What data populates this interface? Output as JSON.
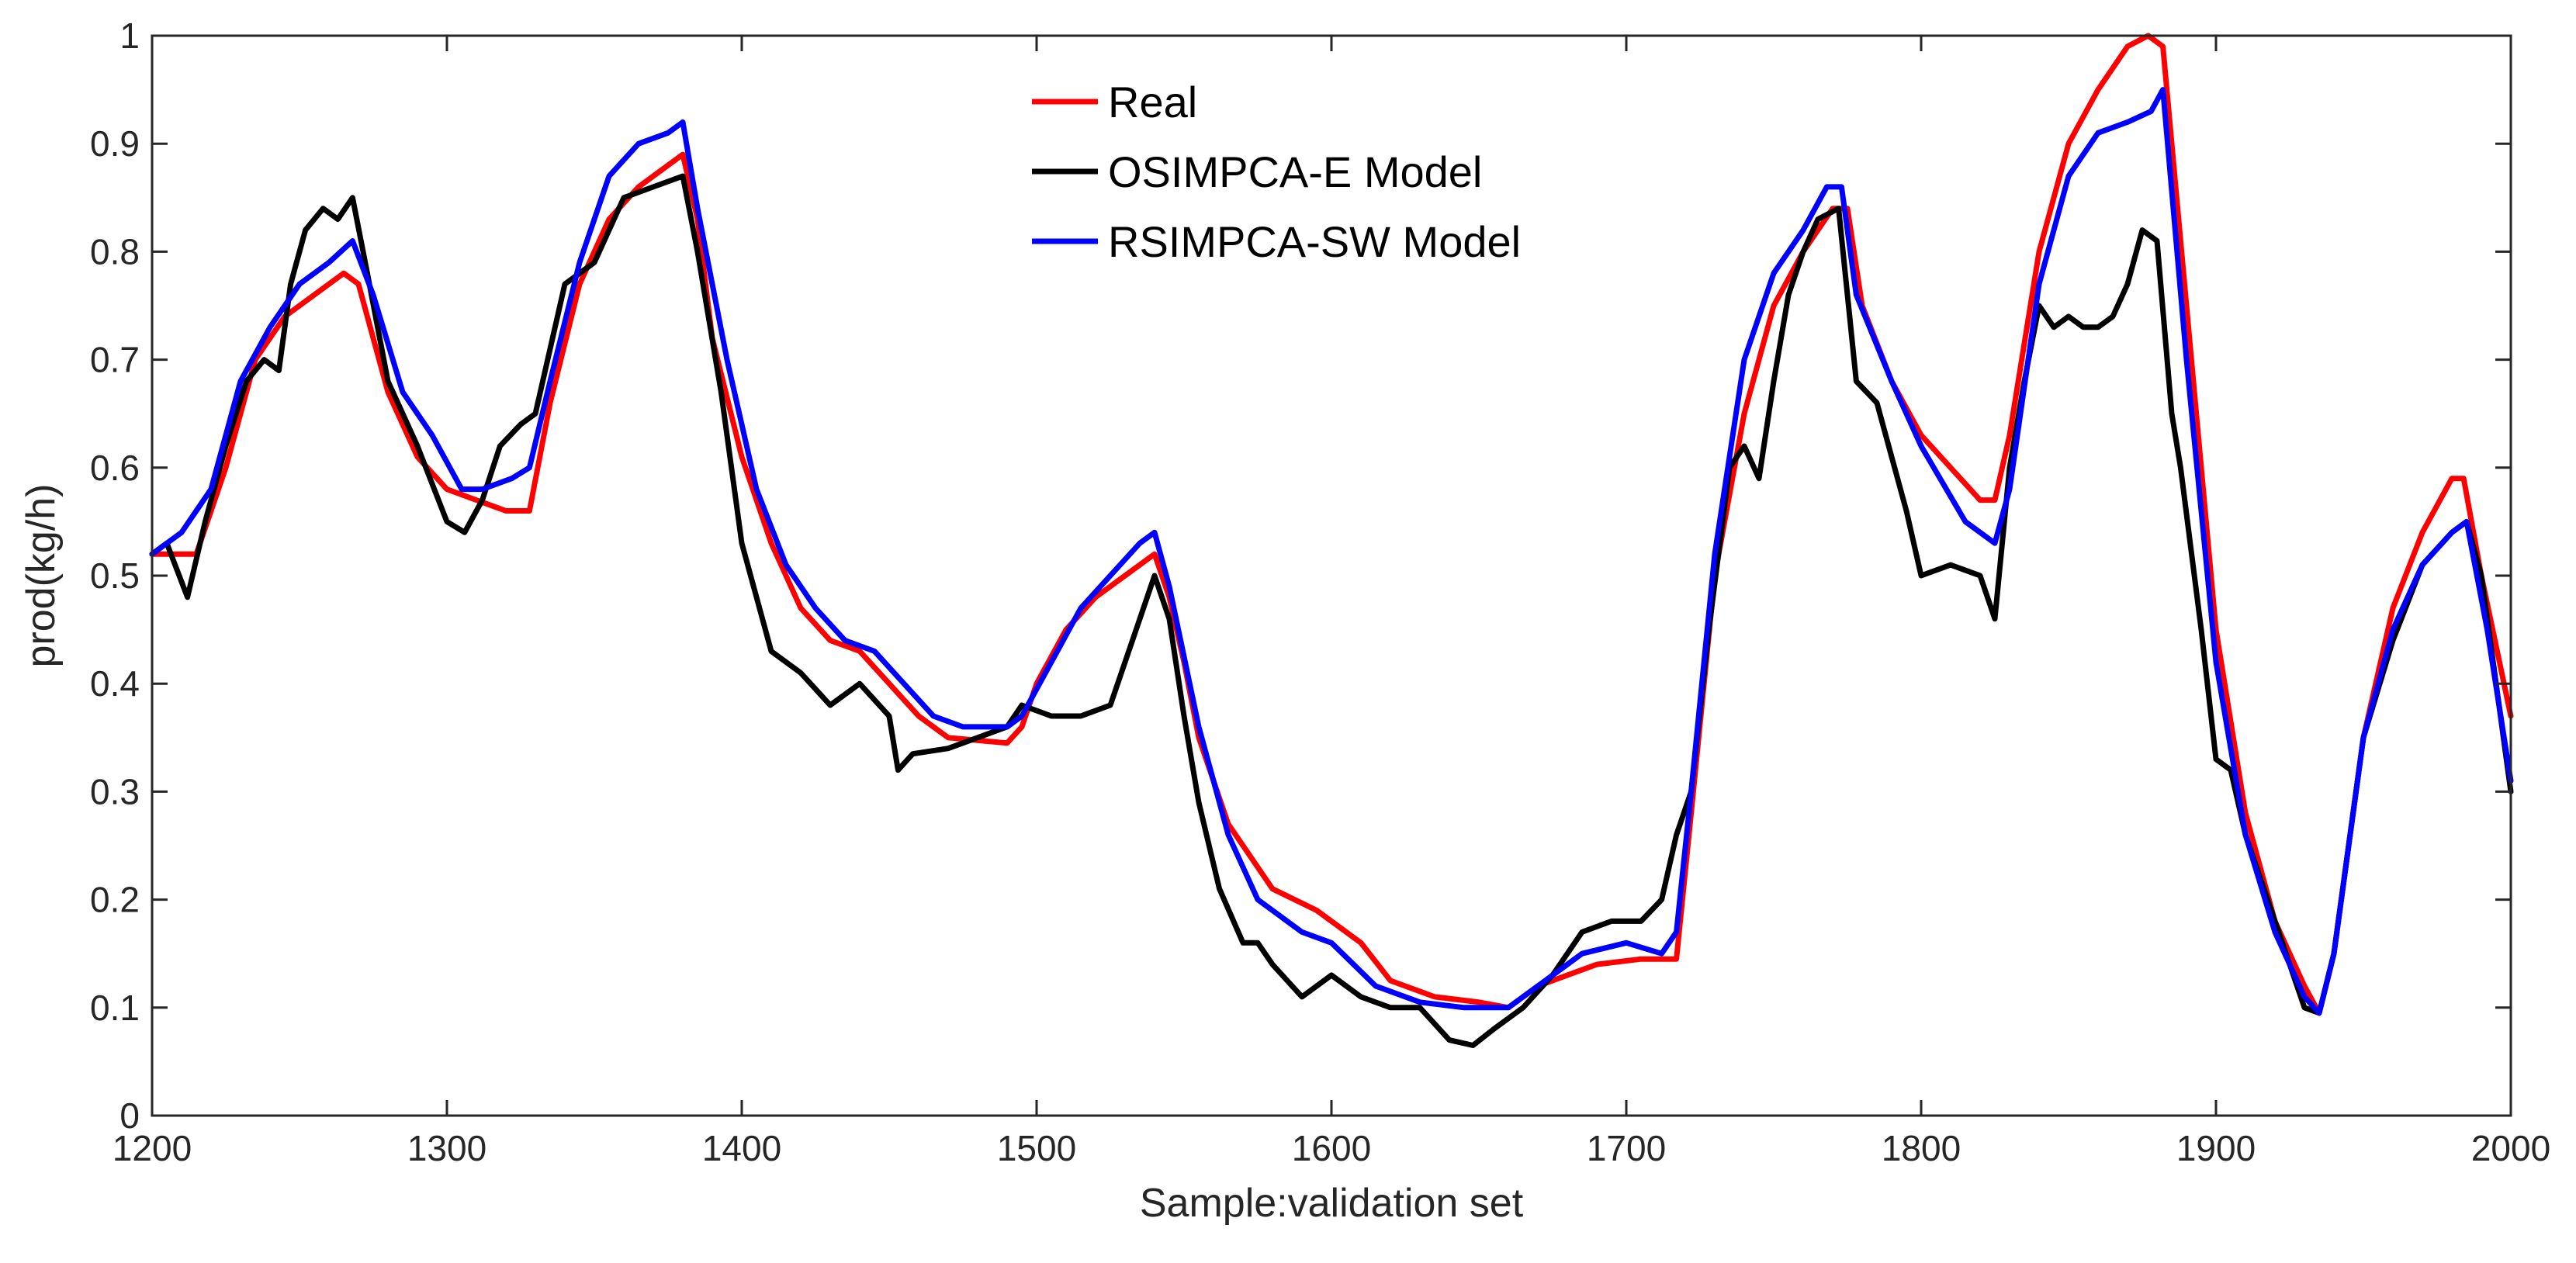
{
  "chart_data": {
    "type": "line",
    "title": "",
    "xlabel": "Sample:validation set",
    "ylabel": "prod(kg/h)",
    "xlim": [
      1200,
      2000
    ],
    "ylim": [
      0,
      1
    ],
    "xticks": [
      1200,
      1300,
      1400,
      1500,
      1600,
      1700,
      1800,
      1900,
      2000
    ],
    "xtick_labels": [
      "1200",
      "1300",
      "1400",
      "1500",
      "1600",
      "1700",
      "1800",
      "1900",
      "2000"
    ],
    "yticks": [
      0,
      0.1,
      0.2,
      0.3,
      0.4,
      0.5,
      0.6,
      0.7,
      0.8,
      0.9,
      1
    ],
    "ytick_labels": [
      "0",
      "0.1",
      "0.2",
      "0.3",
      "0.4",
      "0.5",
      "0.6",
      "0.7",
      "0.8",
      "0.9",
      "1"
    ],
    "grid": false,
    "legend_position": "top-center",
    "series": [
      {
        "name": "Real",
        "color": "#ff0000",
        "points": [
          [
            1200,
            0.52
          ],
          [
            1215,
            0.52
          ],
          [
            1225,
            0.6
          ],
          [
            1235,
            0.7
          ],
          [
            1245,
            0.74
          ],
          [
            1255,
            0.76
          ],
          [
            1265,
            0.78
          ],
          [
            1270,
            0.77
          ],
          [
            1280,
            0.67
          ],
          [
            1290,
            0.61
          ],
          [
            1300,
            0.58
          ],
          [
            1310,
            0.57
          ],
          [
            1320,
            0.56
          ],
          [
            1328,
            0.56
          ],
          [
            1335,
            0.66
          ],
          [
            1345,
            0.77
          ],
          [
            1355,
            0.83
          ],
          [
            1365,
            0.86
          ],
          [
            1375,
            0.88
          ],
          [
            1380,
            0.89
          ],
          [
            1385,
            0.83
          ],
          [
            1390,
            0.72
          ],
          [
            1400,
            0.61
          ],
          [
            1410,
            0.53
          ],
          [
            1420,
            0.47
          ],
          [
            1430,
            0.44
          ],
          [
            1440,
            0.43
          ],
          [
            1450,
            0.4
          ],
          [
            1460,
            0.37
          ],
          [
            1470,
            0.35
          ],
          [
            1490,
            0.345
          ],
          [
            1495,
            0.36
          ],
          [
            1500,
            0.4
          ],
          [
            1510,
            0.45
          ],
          [
            1520,
            0.48
          ],
          [
            1530,
            0.5
          ],
          [
            1540,
            0.52
          ],
          [
            1545,
            0.48
          ],
          [
            1550,
            0.42
          ],
          [
            1555,
            0.35
          ],
          [
            1565,
            0.27
          ],
          [
            1580,
            0.21
          ],
          [
            1595,
            0.19
          ],
          [
            1610,
            0.16
          ],
          [
            1620,
            0.125
          ],
          [
            1635,
            0.11
          ],
          [
            1650,
            0.105
          ],
          [
            1660,
            0.1
          ],
          [
            1670,
            0.12
          ],
          [
            1690,
            0.14
          ],
          [
            1705,
            0.145
          ],
          [
            1717,
            0.145
          ],
          [
            1722,
            0.28
          ],
          [
            1730,
            0.5
          ],
          [
            1740,
            0.65
          ],
          [
            1750,
            0.75
          ],
          [
            1760,
            0.8
          ],
          [
            1770,
            0.84
          ],
          [
            1775,
            0.84
          ],
          [
            1780,
            0.75
          ],
          [
            1790,
            0.68
          ],
          [
            1800,
            0.63
          ],
          [
            1810,
            0.6
          ],
          [
            1820,
            0.57
          ],
          [
            1825,
            0.57
          ],
          [
            1830,
            0.63
          ],
          [
            1840,
            0.8
          ],
          [
            1850,
            0.9
          ],
          [
            1860,
            0.95
          ],
          [
            1870,
            0.99
          ],
          [
            1877,
            1.0
          ],
          [
            1882,
            0.99
          ],
          [
            1890,
            0.75
          ],
          [
            1900,
            0.45
          ],
          [
            1910,
            0.28
          ],
          [
            1920,
            0.18
          ],
          [
            1930,
            0.12
          ],
          [
            1935,
            0.095
          ],
          [
            1940,
            0.15
          ],
          [
            1950,
            0.35
          ],
          [
            1960,
            0.47
          ],
          [
            1970,
            0.54
          ],
          [
            1980,
            0.59
          ],
          [
            1984,
            0.59
          ],
          [
            1990,
            0.5
          ],
          [
            2000,
            0.37
          ]
        ]
      },
      {
        "name": "OSIMPCA-E Model",
        "color": "#000000",
        "points": [
          [
            1200,
            0.52
          ],
          [
            1205,
            0.53
          ],
          [
            1212,
            0.48
          ],
          [
            1218,
            0.55
          ],
          [
            1225,
            0.62
          ],
          [
            1232,
            0.68
          ],
          [
            1238,
            0.7
          ],
          [
            1243,
            0.69
          ],
          [
            1247,
            0.77
          ],
          [
            1252,
            0.82
          ],
          [
            1258,
            0.84
          ],
          [
            1263,
            0.83
          ],
          [
            1268,
            0.85
          ],
          [
            1273,
            0.78
          ],
          [
            1280,
            0.68
          ],
          [
            1290,
            0.62
          ],
          [
            1300,
            0.55
          ],
          [
            1306,
            0.54
          ],
          [
            1312,
            0.57
          ],
          [
            1318,
            0.62
          ],
          [
            1325,
            0.64
          ],
          [
            1330,
            0.65
          ],
          [
            1340,
            0.77
          ],
          [
            1350,
            0.79
          ],
          [
            1360,
            0.85
          ],
          [
            1370,
            0.86
          ],
          [
            1380,
            0.87
          ],
          [
            1385,
            0.8
          ],
          [
            1393,
            0.67
          ],
          [
            1400,
            0.53
          ],
          [
            1410,
            0.43
          ],
          [
            1420,
            0.41
          ],
          [
            1430,
            0.38
          ],
          [
            1440,
            0.4
          ],
          [
            1450,
            0.37
          ],
          [
            1453,
            0.32
          ],
          [
            1458,
            0.335
          ],
          [
            1470,
            0.34
          ],
          [
            1480,
            0.35
          ],
          [
            1490,
            0.36
          ],
          [
            1495,
            0.38
          ],
          [
            1505,
            0.37
          ],
          [
            1515,
            0.37
          ],
          [
            1525,
            0.38
          ],
          [
            1530,
            0.42
          ],
          [
            1535,
            0.46
          ],
          [
            1540,
            0.5
          ],
          [
            1545,
            0.46
          ],
          [
            1550,
            0.37
          ],
          [
            1555,
            0.29
          ],
          [
            1562,
            0.21
          ],
          [
            1570,
            0.16
          ],
          [
            1575,
            0.16
          ],
          [
            1580,
            0.14
          ],
          [
            1590,
            0.11
          ],
          [
            1600,
            0.13
          ],
          [
            1610,
            0.11
          ],
          [
            1620,
            0.1
          ],
          [
            1630,
            0.1
          ],
          [
            1640,
            0.07
          ],
          [
            1648,
            0.065
          ],
          [
            1655,
            0.08
          ],
          [
            1665,
            0.1
          ],
          [
            1675,
            0.13
          ],
          [
            1685,
            0.17
          ],
          [
            1695,
            0.18
          ],
          [
            1705,
            0.18
          ],
          [
            1712,
            0.2
          ],
          [
            1717,
            0.26
          ],
          [
            1722,
            0.3
          ],
          [
            1728,
            0.45
          ],
          [
            1735,
            0.6
          ],
          [
            1740,
            0.62
          ],
          [
            1745,
            0.59
          ],
          [
            1750,
            0.68
          ],
          [
            1755,
            0.76
          ],
          [
            1760,
            0.8
          ],
          [
            1765,
            0.83
          ],
          [
            1772,
            0.84
          ],
          [
            1778,
            0.68
          ],
          [
            1785,
            0.66
          ],
          [
            1790,
            0.61
          ],
          [
            1795,
            0.56
          ],
          [
            1800,
            0.5
          ],
          [
            1810,
            0.51
          ],
          [
            1820,
            0.5
          ],
          [
            1825,
            0.46
          ],
          [
            1830,
            0.6
          ],
          [
            1835,
            0.68
          ],
          [
            1840,
            0.75
          ],
          [
            1845,
            0.73
          ],
          [
            1850,
            0.74
          ],
          [
            1855,
            0.73
          ],
          [
            1860,
            0.73
          ],
          [
            1865,
            0.74
          ],
          [
            1870,
            0.77
          ],
          [
            1875,
            0.82
          ],
          [
            1880,
            0.81
          ],
          [
            1885,
            0.65
          ],
          [
            1888,
            0.6
          ],
          [
            1895,
            0.45
          ],
          [
            1900,
            0.33
          ],
          [
            1905,
            0.32
          ],
          [
            1910,
            0.26
          ],
          [
            1920,
            0.18
          ],
          [
            1930,
            0.1
          ],
          [
            1935,
            0.095
          ],
          [
            1940,
            0.15
          ],
          [
            1950,
            0.35
          ],
          [
            1960,
            0.44
          ],
          [
            1970,
            0.51
          ],
          [
            1980,
            0.54
          ],
          [
            1985,
            0.55
          ],
          [
            1990,
            0.5
          ],
          [
            2000,
            0.3
          ]
        ]
      },
      {
        "name": "RSIMPCA-SW Model",
        "color": "#0000ff",
        "points": [
          [
            1200,
            0.52
          ],
          [
            1210,
            0.54
          ],
          [
            1220,
            0.58
          ],
          [
            1230,
            0.68
          ],
          [
            1240,
            0.73
          ],
          [
            1250,
            0.77
          ],
          [
            1260,
            0.79
          ],
          [
            1268,
            0.81
          ],
          [
            1275,
            0.76
          ],
          [
            1285,
            0.67
          ],
          [
            1295,
            0.63
          ],
          [
            1305,
            0.58
          ],
          [
            1312,
            0.58
          ],
          [
            1322,
            0.59
          ],
          [
            1328,
            0.6
          ],
          [
            1335,
            0.68
          ],
          [
            1345,
            0.79
          ],
          [
            1355,
            0.87
          ],
          [
            1365,
            0.9
          ],
          [
            1375,
            0.91
          ],
          [
            1380,
            0.92
          ],
          [
            1385,
            0.84
          ],
          [
            1395,
            0.7
          ],
          [
            1405,
            0.58
          ],
          [
            1415,
            0.51
          ],
          [
            1425,
            0.47
          ],
          [
            1435,
            0.44
          ],
          [
            1445,
            0.43
          ],
          [
            1455,
            0.4
          ],
          [
            1465,
            0.37
          ],
          [
            1475,
            0.36
          ],
          [
            1490,
            0.36
          ],
          [
            1495,
            0.37
          ],
          [
            1505,
            0.42
          ],
          [
            1515,
            0.47
          ],
          [
            1525,
            0.5
          ],
          [
            1535,
            0.53
          ],
          [
            1540,
            0.54
          ],
          [
            1545,
            0.49
          ],
          [
            1555,
            0.36
          ],
          [
            1565,
            0.26
          ],
          [
            1575,
            0.2
          ],
          [
            1590,
            0.17
          ],
          [
            1600,
            0.16
          ],
          [
            1615,
            0.12
          ],
          [
            1630,
            0.105
          ],
          [
            1645,
            0.1
          ],
          [
            1660,
            0.1
          ],
          [
            1670,
            0.12
          ],
          [
            1685,
            0.15
          ],
          [
            1700,
            0.16
          ],
          [
            1712,
            0.15
          ],
          [
            1717,
            0.17
          ],
          [
            1722,
            0.3
          ],
          [
            1730,
            0.52
          ],
          [
            1740,
            0.7
          ],
          [
            1750,
            0.78
          ],
          [
            1760,
            0.82
          ],
          [
            1768,
            0.86
          ],
          [
            1773,
            0.86
          ],
          [
            1778,
            0.76
          ],
          [
            1790,
            0.68
          ],
          [
            1800,
            0.62
          ],
          [
            1815,
            0.55
          ],
          [
            1825,
            0.53
          ],
          [
            1830,
            0.58
          ],
          [
            1840,
            0.77
          ],
          [
            1850,
            0.87
          ],
          [
            1860,
            0.91
          ],
          [
            1870,
            0.92
          ],
          [
            1878,
            0.93
          ],
          [
            1882,
            0.95
          ],
          [
            1890,
            0.7
          ],
          [
            1900,
            0.42
          ],
          [
            1910,
            0.26
          ],
          [
            1920,
            0.17
          ],
          [
            1930,
            0.11
          ],
          [
            1935,
            0.095
          ],
          [
            1940,
            0.15
          ],
          [
            1950,
            0.35
          ],
          [
            1960,
            0.45
          ],
          [
            1970,
            0.51
          ],
          [
            1980,
            0.54
          ],
          [
            1985,
            0.55
          ],
          [
            1992,
            0.45
          ],
          [
            2000,
            0.31
          ]
        ]
      }
    ]
  }
}
